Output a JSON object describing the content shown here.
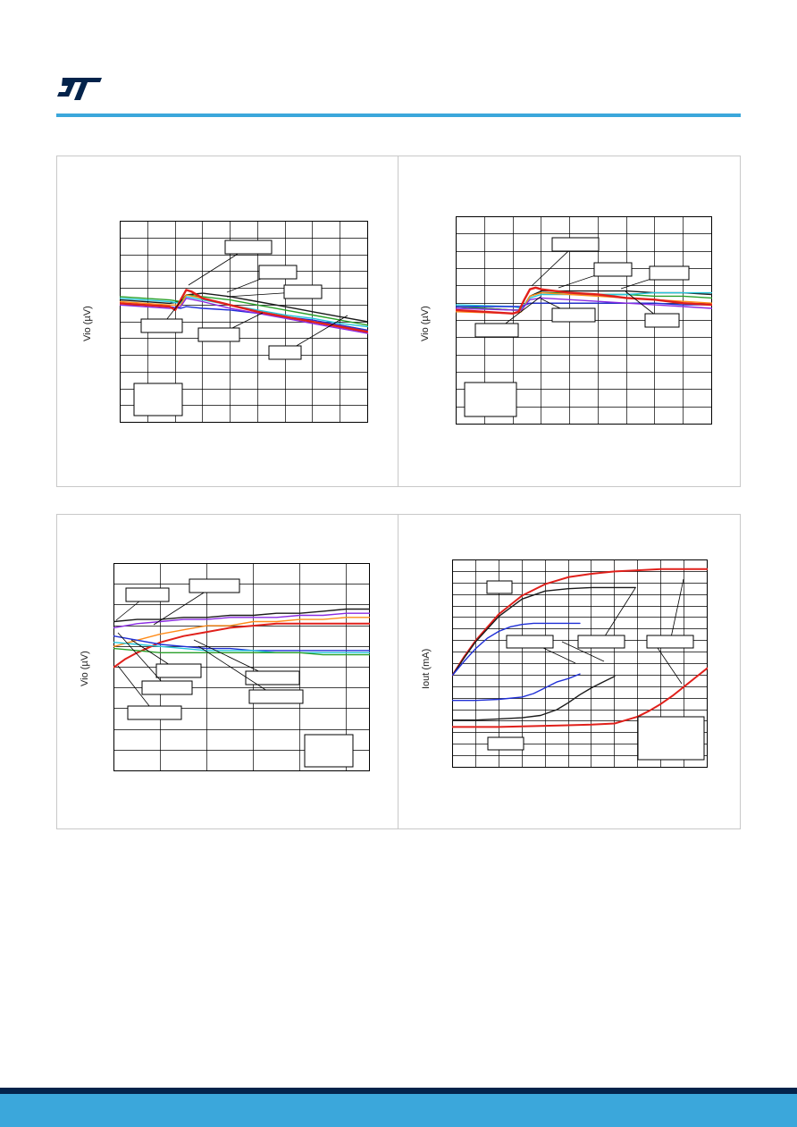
{
  "brand": {
    "logo_icon": "st-logo-icon",
    "accent": "#3ba7db",
    "logo_color": "#03234b",
    "footer_dark": "#03234b",
    "footer_light": "#3ba7db"
  },
  "charts": [
    {
      "ylabel": "Vio (µV)"
    },
    {
      "ylabel": "Vio (µV)"
    },
    {
      "ylabel": "Vio (µV)"
    },
    {
      "ylabel": "Iout (mA)"
    }
  ],
  "chart_data": [
    {
      "type": "line",
      "ylabel": "Vio (µV)",
      "grid": true,
      "xlim": [
        0,
        9
      ],
      "ylim": [
        0,
        12
      ],
      "series": [
        {
          "color": "#1a1a1a",
          "x": [
            0,
            1.8,
            2.2,
            2.4,
            3,
            4,
            5,
            6,
            7,
            8,
            9
          ],
          "y": [
            7.3,
            7.1,
            7.2,
            7.6,
            7.7,
            7.5,
            7.2,
            6.9,
            6.6,
            6.3,
            6.0
          ]
        },
        {
          "color": "#2aa02a",
          "x": [
            0,
            1.8,
            2.2,
            2.4,
            3,
            4,
            5,
            6,
            7,
            8,
            9
          ],
          "y": [
            7.5,
            7.3,
            7.2,
            7.6,
            7.5,
            7.3,
            7.0,
            6.7,
            6.4,
            6.1,
            5.8
          ]
        },
        {
          "color": "#26c6da",
          "x": [
            0,
            1.8,
            2.2,
            2.4,
            3,
            4,
            5,
            6,
            7,
            8,
            9
          ],
          "y": [
            7.4,
            7.2,
            7.1,
            7.5,
            7.3,
            7.0,
            6.7,
            6.4,
            6.2,
            5.9,
            5.7
          ]
        },
        {
          "color": "#ff8c1a",
          "x": [
            0,
            1.8,
            2.2,
            2.4,
            3,
            4,
            5,
            6,
            7,
            8,
            9
          ],
          "y": [
            7.2,
            7.0,
            7.0,
            7.6,
            7.4,
            7.0,
            6.6,
            6.3,
            6.0,
            5.8,
            5.5
          ]
        },
        {
          "color": "#1f2fd6",
          "x": [
            0,
            1.8,
            2.2,
            2.4,
            3,
            4,
            5,
            6,
            7,
            8,
            9
          ],
          "y": [
            7.1,
            6.9,
            6.8,
            6.9,
            6.8,
            6.7,
            6.5,
            6.3,
            6.1,
            5.8,
            5.5
          ]
        },
        {
          "color": "#8a2be2",
          "x": [
            0,
            1.8,
            2.2,
            2.4,
            3,
            4,
            5,
            6,
            7,
            8,
            9
          ],
          "y": [
            7.0,
            6.8,
            6.9,
            7.4,
            7.2,
            6.8,
            6.5,
            6.2,
            5.9,
            5.6,
            5.3
          ]
        },
        {
          "color": "#e0201b",
          "width": 2.4,
          "x": [
            0,
            1.8,
            2.0,
            2.2,
            2.4,
            2.6,
            3,
            4,
            5,
            6,
            7,
            8,
            9
          ],
          "y": [
            7.1,
            6.9,
            6.7,
            7.3,
            7.9,
            7.8,
            7.4,
            7.0,
            6.6,
            6.3,
            6.0,
            5.7,
            5.4
          ]
        }
      ],
      "callouts": 6,
      "legend_box": true
    },
    {
      "type": "line",
      "ylabel": "Vio (µV)",
      "grid": true,
      "xlim": [
        0,
        9
      ],
      "ylim": [
        0,
        12
      ],
      "series": [
        {
          "color": "#1a1a1a",
          "x": [
            0,
            2,
            2.3,
            2.6,
            3,
            4,
            5,
            6,
            7,
            8,
            9
          ],
          "y": [
            6.8,
            6.6,
            6.6,
            7.4,
            7.7,
            7.7,
            7.7,
            7.7,
            7.6,
            7.6,
            7.5
          ]
        },
        {
          "color": "#2aa02a",
          "x": [
            0,
            2,
            2.3,
            2.6,
            3,
            4,
            5,
            6,
            7,
            8,
            9
          ],
          "y": [
            6.8,
            6.6,
            6.6,
            7.4,
            7.6,
            7.6,
            7.5,
            7.5,
            7.4,
            7.4,
            7.3
          ]
        },
        {
          "color": "#26c6da",
          "x": [
            0,
            2,
            2.3,
            2.6,
            3,
            4,
            5,
            6,
            7,
            8,
            9
          ],
          "y": [
            6.9,
            6.8,
            6.7,
            7.3,
            7.5,
            7.5,
            7.5,
            7.5,
            7.6,
            7.6,
            7.6
          ]
        },
        {
          "color": "#ff8c1a",
          "x": [
            0,
            2,
            2.3,
            2.6,
            3,
            4,
            5,
            6,
            7,
            8,
            9
          ],
          "y": [
            6.5,
            6.4,
            6.5,
            7.4,
            7.6,
            7.5,
            7.4,
            7.3,
            7.2,
            7.1,
            7.0
          ]
        },
        {
          "color": "#1f2fd6",
          "x": [
            0,
            2,
            2.3,
            2.6,
            3,
            4,
            5,
            6,
            7,
            8,
            9
          ],
          "y": [
            6.8,
            6.8,
            6.8,
            7.0,
            7.0,
            7.0,
            7.0,
            7.0,
            7.0,
            6.9,
            6.9
          ]
        },
        {
          "color": "#8a2be2",
          "x": [
            0,
            2,
            2.3,
            2.6,
            3,
            4,
            5,
            6,
            7,
            8,
            9
          ],
          "y": [
            6.7,
            6.6,
            6.6,
            7.2,
            7.3,
            7.2,
            7.1,
            7.0,
            6.9,
            6.8,
            6.7
          ]
        },
        {
          "color": "#e0201b",
          "width": 2.4,
          "x": [
            0,
            2,
            2.2,
            2.4,
            2.6,
            2.8,
            3,
            4,
            5,
            6,
            7,
            8,
            9
          ],
          "y": [
            6.6,
            6.4,
            6.5,
            7.2,
            7.8,
            7.9,
            7.8,
            7.6,
            7.5,
            7.3,
            7.2,
            7.0,
            6.9
          ]
        }
      ],
      "callouts": 6,
      "legend_box": true
    },
    {
      "type": "line",
      "ylabel": "Vio (µV)",
      "grid": true,
      "xlim": [
        0,
        5.5
      ],
      "ylim": [
        0,
        10
      ],
      "series": [
        {
          "color": "#1a1a1a",
          "x": [
            0,
            0.5,
            1,
            1.5,
            2,
            2.5,
            3,
            3.5,
            4,
            4.5,
            5,
            5.5
          ],
          "y": [
            7.2,
            7.3,
            7.3,
            7.4,
            7.4,
            7.5,
            7.5,
            7.6,
            7.6,
            7.7,
            7.8,
            7.8
          ]
        },
        {
          "color": "#8a2be2",
          "x": [
            0,
            0.5,
            1,
            1.5,
            2,
            2.5,
            3,
            3.5,
            4,
            4.5,
            5,
            5.5
          ],
          "y": [
            6.9,
            7.1,
            7.2,
            7.3,
            7.3,
            7.4,
            7.4,
            7.4,
            7.5,
            7.5,
            7.6,
            7.6
          ]
        },
        {
          "color": "#ff8c1a",
          "x": [
            0,
            0.5,
            1,
            1.5,
            2,
            2.5,
            3,
            3.5,
            4,
            4.5,
            5,
            5.5
          ],
          "y": [
            6.0,
            6.3,
            6.6,
            6.8,
            7.0,
            7.0,
            7.2,
            7.2,
            7.3,
            7.3,
            7.4,
            7.4
          ]
        },
        {
          "color": "#e0201b",
          "width": 2.0,
          "x": [
            0,
            0.25,
            0.5,
            1,
            1.5,
            2,
            2.5,
            3,
            3.5,
            4,
            4.5,
            5,
            5.5
          ],
          "y": [
            5.0,
            5.4,
            5.7,
            6.2,
            6.5,
            6.7,
            6.9,
            7.0,
            7.1,
            7.1,
            7.1,
            7.1,
            7.1
          ]
        },
        {
          "color": "#1f2fd6",
          "x": [
            0,
            0.5,
            1,
            1.5,
            2,
            2.5,
            3,
            3.5,
            4,
            4.5,
            5,
            5.5
          ],
          "y": [
            6.5,
            6.3,
            6.1,
            6.0,
            5.9,
            5.9,
            5.8,
            5.8,
            5.8,
            5.8,
            5.8,
            5.8
          ]
        },
        {
          "color": "#26c6da",
          "x": [
            0,
            0.5,
            1,
            1.5,
            2,
            2.5,
            3,
            3.5,
            4,
            4.5,
            5,
            5.5
          ],
          "y": [
            6.2,
            6.1,
            6.0,
            5.9,
            5.8,
            5.8,
            5.8,
            5.7,
            5.7,
            5.7,
            5.7,
            5.7
          ]
        },
        {
          "color": "#2aa02a",
          "x": [
            0,
            0.5,
            1,
            1.5,
            2,
            2.5,
            3,
            3.5,
            4,
            4.5,
            5,
            5.5
          ],
          "y": [
            5.9,
            5.8,
            5.7,
            5.7,
            5.7,
            5.7,
            5.7,
            5.7,
            5.7,
            5.6,
            5.6,
            5.6
          ]
        }
      ],
      "callouts": 7,
      "legend_box": true
    },
    {
      "type": "line",
      "ylabel": "Iout (mA)",
      "grid": true,
      "xlim": [
        0,
        11
      ],
      "ylim": [
        0,
        18
      ],
      "series": [
        {
          "color": "#e0201b",
          "width": 2.0,
          "x": [
            0,
            0.5,
            1,
            2,
            3,
            4,
            5,
            6,
            7,
            8,
            9,
            10,
            11
          ],
          "y": [
            8,
            9.6,
            11,
            13.3,
            14.9,
            15.9,
            16.5,
            16.8,
            17.0,
            17.1,
            17.2,
            17.2,
            17.2
          ]
        },
        {
          "color": "#1a1a1a",
          "x": [
            0,
            0.5,
            1,
            2,
            3,
            4,
            5,
            6,
            7,
            7.9
          ],
          "y": [
            8,
            9.5,
            10.9,
            13.1,
            14.6,
            15.3,
            15.5,
            15.6,
            15.6,
            15.6
          ]
        },
        {
          "color": "#1f2fd6",
          "x": [
            0,
            0.5,
            1,
            1.5,
            2,
            2.5,
            3,
            3.5,
            4,
            4.5,
            5,
            5.5
          ],
          "y": [
            8,
            9.2,
            10.3,
            11.2,
            11.8,
            12.2,
            12.4,
            12.5,
            12.5,
            12.5,
            12.5,
            12.5
          ]
        },
        {
          "color": "#1f2fd6",
          "x": [
            0,
            1,
            2,
            3,
            3.5,
            4,
            4.5,
            5,
            5.5
          ],
          "y": [
            5.8,
            5.8,
            5.9,
            6.1,
            6.4,
            6.9,
            7.4,
            7.7,
            8.1
          ]
        },
        {
          "color": "#1a1a1a",
          "x": [
            0,
            1,
            2,
            3,
            3.8,
            4.5,
            5,
            5.5,
            6,
            6.5,
            7
          ],
          "y": [
            4.1,
            4.1,
            4.2,
            4.3,
            4.5,
            5.0,
            5.6,
            6.3,
            6.9,
            7.4,
            7.9
          ]
        },
        {
          "color": "#e0201b",
          "width": 2.0,
          "x": [
            0,
            2,
            4,
            6,
            7,
            7.5,
            8,
            8.5,
            9,
            9.5,
            10,
            10.5,
            11
          ],
          "y": [
            3.5,
            3.5,
            3.6,
            3.7,
            3.8,
            4.1,
            4.4,
            4.9,
            5.5,
            6.2,
            7.0,
            7.8,
            8.6
          ]
        }
      ],
      "callouts": 5,
      "legend_box": true
    }
  ]
}
